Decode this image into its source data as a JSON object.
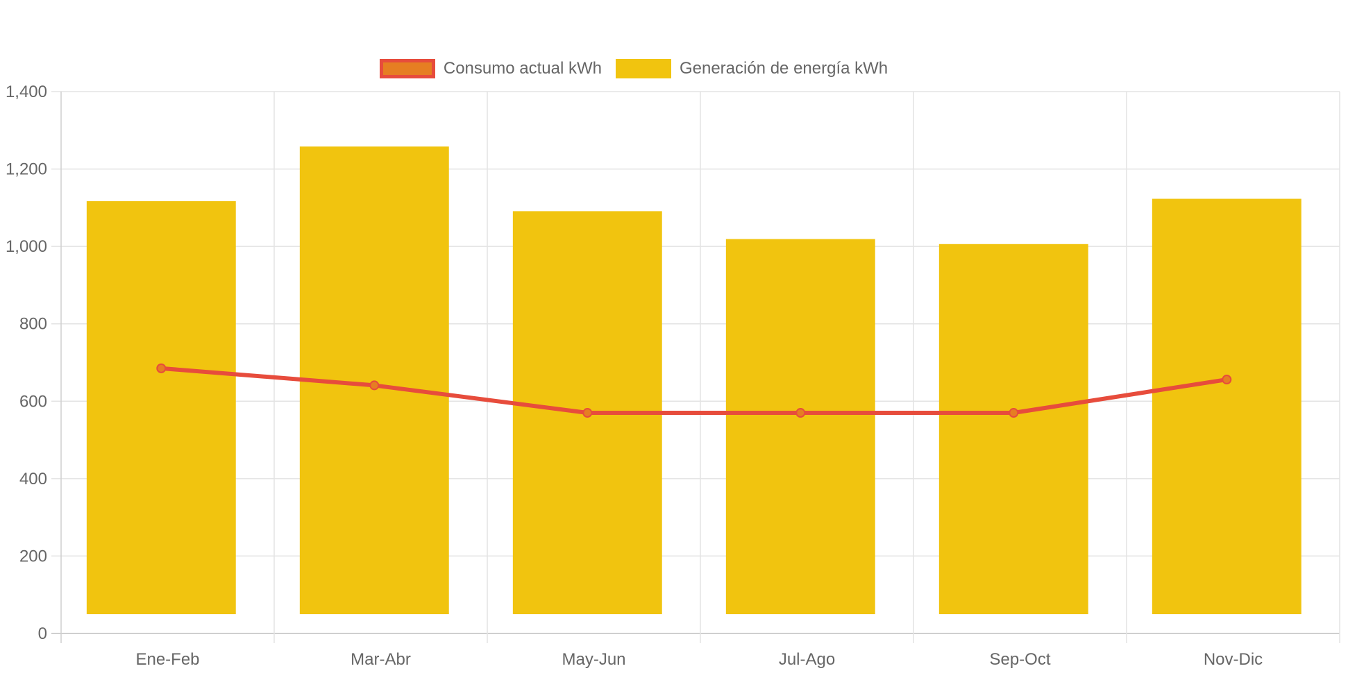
{
  "chart_data": {
    "type": "bar",
    "categories": [
      "Ene-Feb",
      "Mar-Abr",
      "May-Jun",
      "Jul-Ago",
      "Sep-Oct",
      "Nov-Dic"
    ],
    "series": [
      {
        "name": "Consumo actual kWh",
        "type": "line",
        "values": [
          685,
          641,
          570,
          570,
          570,
          656
        ],
        "color": "#e74c3c",
        "point_fill": "#e67e22"
      },
      {
        "name": "Generación de energía kWh",
        "type": "bar",
        "base": 50,
        "values": [
          1117,
          1258,
          1091,
          1019,
          1006,
          1123
        ],
        "color": "#f1c40f"
      }
    ],
    "y_ticks": [
      "0",
      "200",
      "400",
      "600",
      "800",
      "1,000",
      "1,200",
      "1,400"
    ],
    "ylim": [
      0,
      1400
    ],
    "grid": true,
    "legend_position": "top-center"
  }
}
